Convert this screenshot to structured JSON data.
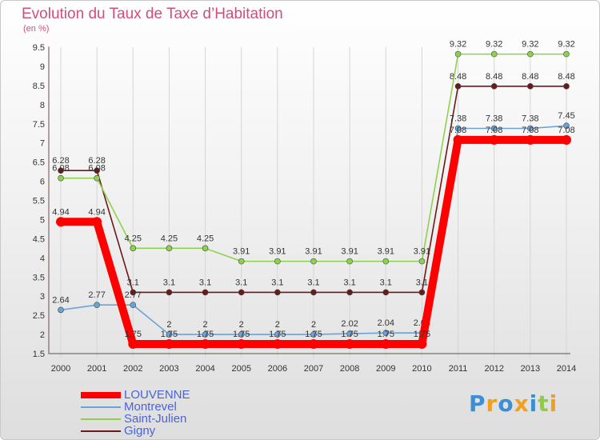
{
  "chart_data": {
    "type": "line",
    "title": "Evolution du Taux de Taxe d’Habitation",
    "subtitle": "(en %)",
    "x": [
      "2000",
      "2001",
      "2002",
      "2003",
      "2004",
      "2005",
      "2006",
      "2007",
      "2008",
      "2009",
      "2010",
      "2011",
      "2012",
      "2013",
      "2014"
    ],
    "ylim": [
      1.5,
      9.5
    ],
    "yticks": [
      "1.5",
      "2",
      "2.5",
      "3",
      "3.5",
      "4",
      "4.5",
      "5",
      "5.5",
      "6",
      "6.5",
      "7",
      "7.5",
      "8",
      "8.5",
      "9",
      "9.5"
    ],
    "grid": "vertical",
    "legend_position": "bottom-left",
    "series": [
      {
        "name": "Gigny",
        "color": "#6b1a1a",
        "values": [
          6.28,
          6.28,
          3.1,
          3.1,
          3.1,
          3.1,
          3.1,
          3.1,
          3.1,
          3.1,
          3.1,
          8.48,
          8.48,
          8.48,
          8.48
        ],
        "labels": [
          "6.28",
          "6.28",
          "3.1",
          "3.1",
          "3.1",
          "3.1",
          "3.1",
          "3.1",
          "3.1",
          "3.1",
          "3.1",
          "8.48",
          "8.48",
          "8.48",
          "8.48"
        ]
      },
      {
        "name": "Saint-Julien",
        "color": "#8fd14f",
        "values": [
          6.08,
          6.08,
          4.25,
          4.25,
          4.25,
          3.91,
          3.91,
          3.91,
          3.91,
          3.91,
          3.91,
          9.32,
          9.32,
          9.32,
          9.32
        ],
        "labels": [
          "6.08",
          "6.08",
          "4.25",
          "4.25",
          "4.25",
          "3.91",
          "3.91",
          "3.91",
          "3.91",
          "3.91",
          "3.91",
          "9.32",
          "9.32",
          "9.32",
          "9.32"
        ]
      },
      {
        "name": "Montrevel",
        "color": "#6ba3d6",
        "values": [
          2.64,
          2.77,
          2.77,
          2,
          2,
          2,
          2,
          2,
          2.02,
          2.04,
          2.04,
          7.38,
          7.38,
          7.38,
          7.45
        ],
        "labels": [
          "2.64",
          "2.77",
          "2.77",
          "2",
          "2",
          "2",
          "2",
          "2",
          "2.02",
          "2.04",
          "2.04",
          "7.38",
          "7.38",
          "7.38",
          "7.45"
        ]
      },
      {
        "name": "LOUVENNE",
        "color": "#ff0000",
        "values": [
          4.94,
          4.94,
          1.75,
          1.75,
          1.75,
          1.75,
          1.75,
          1.75,
          1.75,
          1.75,
          1.75,
          7.08,
          7.08,
          7.08,
          7.08
        ],
        "labels": [
          "4.94",
          "4.94",
          "1.75",
          "1.75",
          "1.75",
          "1.75",
          "1.75",
          "1.75",
          "1.75",
          "1.75",
          "1.75",
          "7.08",
          "7.08",
          "7.08",
          "7.08"
        ]
      }
    ],
    "legend": [
      {
        "name": "LOUVENNE",
        "color": "#ff0000"
      },
      {
        "name": "Montrevel",
        "color": "#6ba3d6"
      },
      {
        "name": "Saint-Julien",
        "color": "#8fd14f"
      },
      {
        "name": "Gigny",
        "color": "#6b1a1a"
      }
    ]
  },
  "brand": {
    "letters": [
      {
        "char": "P",
        "color": "#3b8fd6"
      },
      {
        "char": "r",
        "color": "#f0a020"
      },
      {
        "char": "o",
        "color": "#3b8fd6"
      },
      {
        "char": "x",
        "color": "#f0a020"
      },
      {
        "char": "i",
        "color": "#3b8fd6"
      },
      {
        "char": "t",
        "color": "#8fcf3f"
      },
      {
        "char": "i",
        "color": "#f0a020"
      }
    ]
  }
}
